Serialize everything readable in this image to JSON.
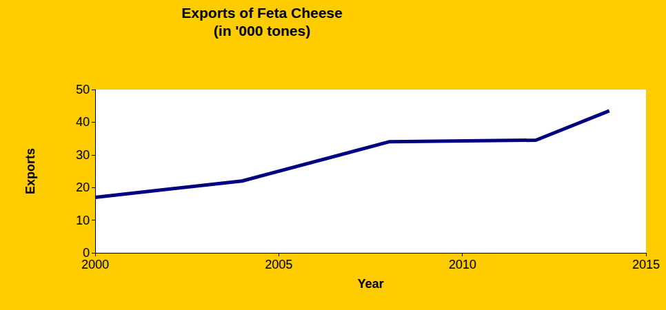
{
  "chart_data": {
    "type": "line",
    "title": "Exports of Feta Cheese\n(in '000 tones)",
    "x_label": "Year",
    "y_label": "Exports",
    "x": [
      2000,
      2004,
      2008,
      2012,
      2014
    ],
    "values": [
      17,
      22,
      34,
      34.5,
      43.5
    ],
    "color": "#000080",
    "xlim": [
      2000,
      2015
    ],
    "xticks": [
      2000,
      2005,
      2010,
      2015
    ],
    "ylim": [
      0,
      50
    ],
    "yticks": [
      0,
      10,
      20,
      30,
      40,
      50
    ],
    "grid": false
  }
}
